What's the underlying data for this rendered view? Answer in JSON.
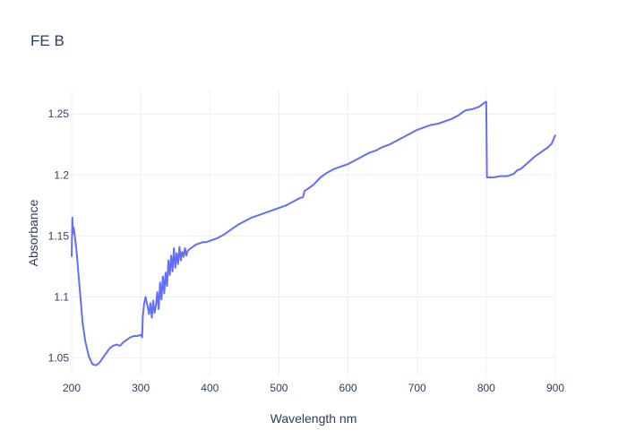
{
  "chart_data": {
    "type": "line",
    "title": "FE B",
    "xlabel": "Wavelength nm",
    "ylabel": "Absorbance",
    "xlim": [
      200,
      900
    ],
    "ylim": [
      1.035,
      1.27
    ],
    "xticks": [
      200,
      300,
      400,
      500,
      600,
      700,
      800,
      900
    ],
    "xtick_labels": [
      "200",
      "300",
      "400",
      "500",
      "600",
      "700",
      "800",
      "900"
    ],
    "yticks": [
      1.05,
      1.1,
      1.15,
      1.2,
      1.25
    ],
    "ytick_labels": [
      "1.05",
      "1.1",
      "1.15",
      "1.2",
      "1.25"
    ],
    "grid": true,
    "colors": {
      "line": "#636efa",
      "grid": "#ebf0f8",
      "text": "#2a3f5f"
    },
    "series": [
      {
        "x": [
          200,
          201,
          202,
          203,
          205,
          207,
          210,
          213,
          216,
          220,
          225,
          230,
          235,
          240,
          245,
          250,
          255,
          260,
          265,
          270,
          275,
          280,
          285,
          290,
          295,
          300,
          302,
          303,
          305,
          307,
          310,
          312,
          314,
          316,
          318,
          320,
          322,
          324,
          326,
          328,
          330,
          332,
          334,
          336,
          338,
          340,
          342,
          344,
          346,
          348,
          350,
          352,
          354,
          356,
          358,
          360,
          362,
          364,
          366,
          368,
          370,
          375,
          380,
          385,
          390,
          395,
          400,
          410,
          420,
          430,
          440,
          450,
          460,
          470,
          480,
          490,
          500,
          510,
          520,
          530,
          535,
          537,
          540,
          550,
          560,
          570,
          580,
          590,
          600,
          610,
          620,
          630,
          640,
          650,
          660,
          670,
          680,
          690,
          700,
          710,
          720,
          730,
          740,
          750,
          760,
          765,
          770,
          780,
          790,
          799,
          800,
          801,
          810,
          820,
          830,
          840,
          845,
          850,
          860,
          870,
          880,
          890,
          895,
          900
        ],
        "y": [
          1.133,
          1.165,
          1.152,
          1.157,
          1.148,
          1.138,
          1.118,
          1.098,
          1.078,
          1.063,
          1.051,
          1.045,
          1.044,
          1.046,
          1.05,
          1.054,
          1.058,
          1.06,
          1.061,
          1.06,
          1.063,
          1.065,
          1.067,
          1.068,
          1.068,
          1.069,
          1.067,
          1.085,
          1.095,
          1.1,
          1.092,
          1.086,
          1.095,
          1.083,
          1.097,
          1.087,
          1.093,
          1.104,
          1.09,
          1.112,
          1.098,
          1.117,
          1.103,
          1.12,
          1.109,
          1.13,
          1.118,
          1.134,
          1.121,
          1.14,
          1.124,
          1.136,
          1.127,
          1.141,
          1.13,
          1.137,
          1.133,
          1.14,
          1.134,
          1.138,
          1.139,
          1.141,
          1.143,
          1.144,
          1.145,
          1.145,
          1.146,
          1.148,
          1.151,
          1.155,
          1.159,
          1.162,
          1.165,
          1.167,
          1.169,
          1.171,
          1.173,
          1.175,
          1.178,
          1.181,
          1.182,
          1.187,
          1.188,
          1.192,
          1.198,
          1.202,
          1.205,
          1.207,
          1.209,
          1.212,
          1.215,
          1.218,
          1.22,
          1.223,
          1.225,
          1.228,
          1.231,
          1.234,
          1.237,
          1.239,
          1.241,
          1.242,
          1.244,
          1.246,
          1.249,
          1.251,
          1.253,
          1.254,
          1.256,
          1.26,
          1.26,
          1.198,
          1.198,
          1.199,
          1.199,
          1.201,
          1.204,
          1.205,
          1.21,
          1.215,
          1.219,
          1.223,
          1.226,
          1.233
        ]
      }
    ]
  }
}
